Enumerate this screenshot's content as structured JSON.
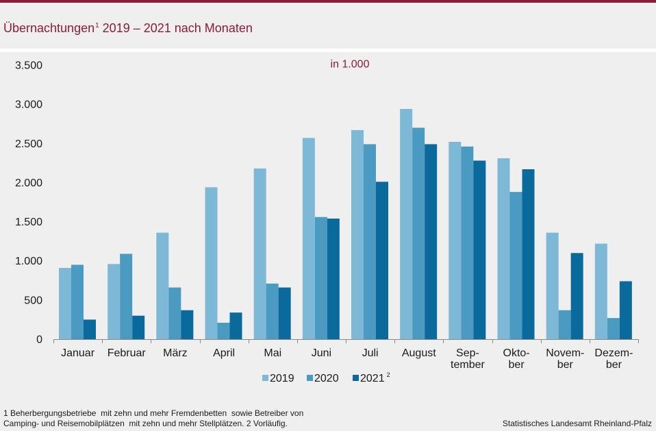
{
  "header": {
    "title": "Übernachtungen",
    "title_footnote_mark": "1",
    "title_rest": "2019 – 2021 nach Monaten"
  },
  "chart_data": {
    "type": "bar",
    "unit_label": "in 1.000",
    "ylim": [
      0,
      3500
    ],
    "yticks": [
      {
        "value": 0,
        "label": "0"
      },
      {
        "value": 500,
        "label": "500"
      },
      {
        "value": 1000,
        "label": "1.000"
      },
      {
        "value": 1500,
        "label": "1.500"
      },
      {
        "value": 2000,
        "label": "2.000"
      },
      {
        "value": 2500,
        "label": "2.500"
      },
      {
        "value": 3000,
        "label": "3.000"
      },
      {
        "value": 3500,
        "label": "3.500"
      }
    ],
    "categories": [
      [
        "Januar"
      ],
      [
        "Februar"
      ],
      [
        "März"
      ],
      [
        "April"
      ],
      [
        "Mai"
      ],
      [
        "Juni"
      ],
      [
        "Juli"
      ],
      [
        "August"
      ],
      [
        "Sep-",
        "tember"
      ],
      [
        "Okto-",
        "ber"
      ],
      [
        "Novem-",
        "ber"
      ],
      [
        "Dezem-",
        "ber"
      ]
    ],
    "series": [
      {
        "name": "2019",
        "footnote_mark": "",
        "color": "#7db9d6",
        "values": [
          910,
          960,
          1360,
          1940,
          2180,
          2570,
          2670,
          2940,
          2520,
          2310,
          1360,
          1220
        ]
      },
      {
        "name": "2020",
        "footnote_mark": "",
        "color": "#4a9ac2",
        "values": [
          950,
          1090,
          660,
          210,
          710,
          1560,
          2490,
          2700,
          2460,
          1880,
          370,
          270
        ]
      },
      {
        "name": "2021",
        "footnote_mark": "2",
        "color": "#0a6a9c",
        "values": [
          250,
          300,
          370,
          340,
          660,
          1540,
          2010,
          2490,
          2280,
          2170,
          1100,
          740
        ]
      }
    ]
  },
  "footnotes": {
    "line1": "1 Beherbergungsbetriebe  mit zehn und mehr Fremdenbetten  sowie Betreiber von",
    "line2": "Camping- und Reisemobilplätzen  mit zehn und mehr Stellplätzen. 2 Vorläufig."
  },
  "source": "Statistisches Landesamt Rheinland-Pfalz",
  "colors": {
    "brand": "#8c1b3a",
    "background": "#efefef",
    "axis": "#8a8a8a"
  }
}
